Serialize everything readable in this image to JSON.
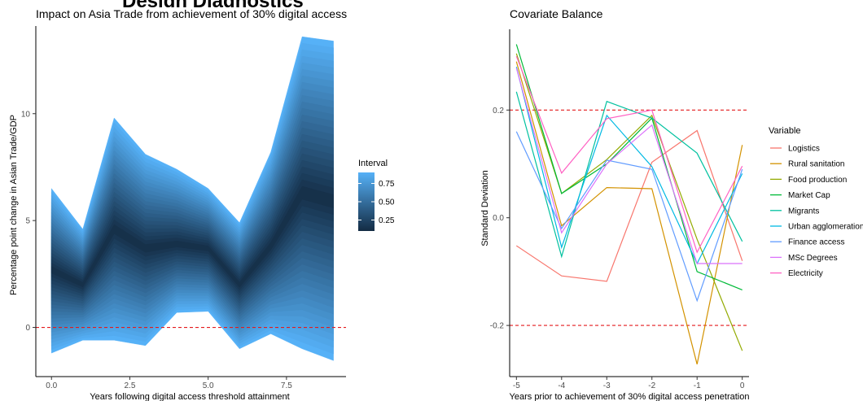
{
  "page_title": "Design Diagnostics",
  "chart_data": [
    {
      "type": "area",
      "title": "Impact on Asia Trade from achievement of 30% digital access",
      "xlabel": "Years following digital access threshold attainment",
      "ylabel": "Percentage point change in Asian Trade/GDP",
      "xlim": [
        -0.5,
        9.4
      ],
      "ylim": [
        -2.3,
        14.1
      ],
      "xticks": [
        0.0,
        2.5,
        5.0,
        7.5
      ],
      "xtick_labels": [
        "0.0",
        "2.5",
        "5.0",
        "7.5"
      ],
      "yticks": [
        0,
        5,
        10
      ],
      "ytick_labels": [
        "0",
        "5",
        "10"
      ],
      "x": [
        0,
        1,
        2,
        3,
        4,
        5,
        6,
        7,
        8,
        9
      ],
      "upper": [
        6.5,
        4.6,
        9.8,
        8.1,
        7.4,
        6.5,
        4.9,
        8.2,
        13.6,
        13.4
      ],
      "median": [
        2.7,
        2.0,
        4.6,
        3.7,
        3.9,
        3.7,
        2.0,
        3.8,
        6.3,
        5.9
      ],
      "lower": [
        -1.2,
        -0.6,
        -0.6,
        -0.85,
        0.7,
        0.75,
        -1.0,
        -0.3,
        -1.0,
        -1.55
      ],
      "reference_line": 0,
      "reference_color": "#e41a1c",
      "legend": {
        "title": "Interval",
        "labels": [
          "0.75",
          "0.50",
          "0.25"
        ],
        "values": [
          0.75,
          0.5,
          0.25
        ],
        "range": [
          0.1,
          0.9
        ],
        "low_color": "#132b43",
        "high_color": "#56b1f7"
      }
    },
    {
      "type": "line",
      "title": "Covariate Balance",
      "xlabel": "Years prior to achievement of 30% digital access penetration",
      "ylabel": "Standard Deviation",
      "xlim": [
        -5.15,
        0.15
      ],
      "ylim": [
        -0.295,
        0.35
      ],
      "xticks": [
        -5,
        -4,
        -3,
        -2,
        -1,
        0
      ],
      "xtick_labels": [
        "-5",
        "-4",
        "-3",
        "-2",
        "-1",
        "0"
      ],
      "yticks": [
        -0.2,
        0.0,
        0.2
      ],
      "ytick_labels": [
        "-0.2",
        "0.0",
        "0.2"
      ],
      "x": [
        -5,
        -4,
        -3,
        -2,
        -1,
        0
      ],
      "reference_lines": [
        0.2,
        -0.2
      ],
      "reference_color": "#e41a1c",
      "legend_title": "Variable",
      "series": [
        {
          "name": "Logistics",
          "color": "#f8766d",
          "values": [
            -0.052,
            -0.108,
            -0.118,
            0.103,
            0.162,
            -0.08
          ]
        },
        {
          "name": "Rural sanitation",
          "color": "#d39200",
          "values": [
            0.29,
            -0.015,
            0.056,
            0.054,
            -0.272,
            0.135
          ]
        },
        {
          "name": "Food production",
          "color": "#93aa00",
          "values": [
            0.305,
            0.045,
            0.108,
            0.19,
            -0.04,
            -0.247
          ]
        },
        {
          "name": "Market Cap",
          "color": "#00ba38",
          "values": [
            0.322,
            0.045,
            0.1,
            0.185,
            -0.1,
            -0.134
          ]
        },
        {
          "name": "Migrants",
          "color": "#00c19f",
          "values": [
            0.234,
            -0.072,
            0.216,
            0.185,
            0.12,
            -0.044
          ]
        },
        {
          "name": "Urban agglomeration",
          "color": "#00b9e3",
          "values": [
            0.28,
            -0.055,
            0.19,
            0.095,
            -0.085,
            0.082
          ]
        },
        {
          "name": "Finance access",
          "color": "#619cff",
          "values": [
            0.16,
            -0.02,
            0.107,
            0.09,
            -0.154,
            0.09
          ]
        },
        {
          "name": "MSc Degrees",
          "color": "#db72fb",
          "values": [
            0.278,
            -0.028,
            0.1,
            0.172,
            -0.085,
            -0.085
          ]
        },
        {
          "name": "Electricity",
          "color": "#ff61c3",
          "values": [
            0.3,
            0.083,
            0.184,
            0.2,
            -0.064,
            0.096
          ]
        }
      ]
    }
  ]
}
